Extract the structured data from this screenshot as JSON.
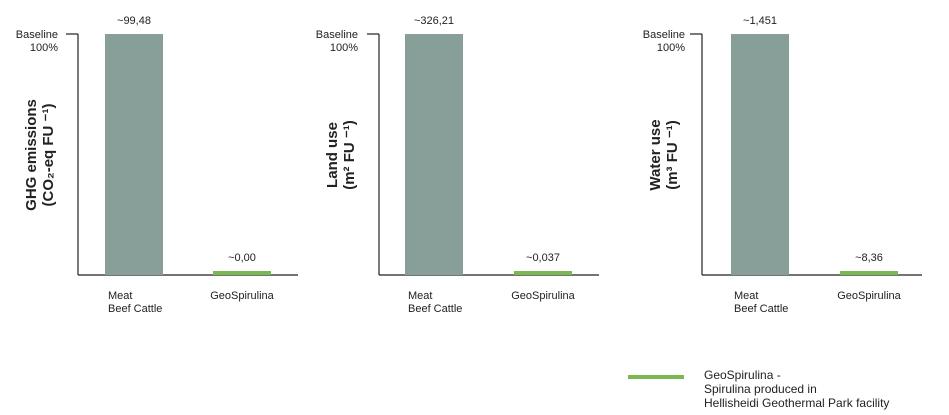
{
  "colors": {
    "meat_bar": "#889e98",
    "geospirulina_bar": "#7ab851",
    "axis": "#222222",
    "text": "#222222"
  },
  "legend": {
    "line1": "GeoSpirulina -",
    "line2": "Spirulina produced in",
    "line3": "Hellisheidi Geothermal Park facility"
  },
  "chart_data": [
    {
      "type": "bar",
      "baseline_label_line1": "Baseline",
      "baseline_label_line2": "100%",
      "ylabel_line1": "GHG emissions",
      "ylabel_line2": "(CO₂-eq FU ⁻¹)",
      "categories": [
        [
          "Meat",
          "Beef Cattle"
        ],
        [
          "GeoSpirulina"
        ]
      ],
      "values": [
        100,
        0.0
      ],
      "value_labels": [
        "~99,48",
        "~0,00"
      ],
      "ylim": [
        0,
        100
      ]
    },
    {
      "type": "bar",
      "baseline_label_line1": "Baseline",
      "baseline_label_line2": "100%",
      "ylabel_line1": "Land use",
      "ylabel_line2": "(m² FU ⁻¹)",
      "categories": [
        [
          "Meat",
          "Beef Cattle"
        ],
        [
          "GeoSpirulina"
        ]
      ],
      "values": [
        100,
        0.011
      ],
      "value_labels": [
        "~326,21",
        "~0,037"
      ],
      "ylim": [
        0,
        100
      ]
    },
    {
      "type": "bar",
      "baseline_label_line1": "Baseline",
      "baseline_label_line2": "100%",
      "ylabel_line1": "Water use",
      "ylabel_line2": "(m³ FU ⁻¹)",
      "categories": [
        [
          "Meat",
          "Beef Cattle"
        ],
        [
          "GeoSpirulina"
        ]
      ],
      "values": [
        100,
        0.58
      ],
      "value_labels": [
        "~1,451",
        "~8,36"
      ],
      "ylim": [
        0,
        100
      ]
    }
  ]
}
